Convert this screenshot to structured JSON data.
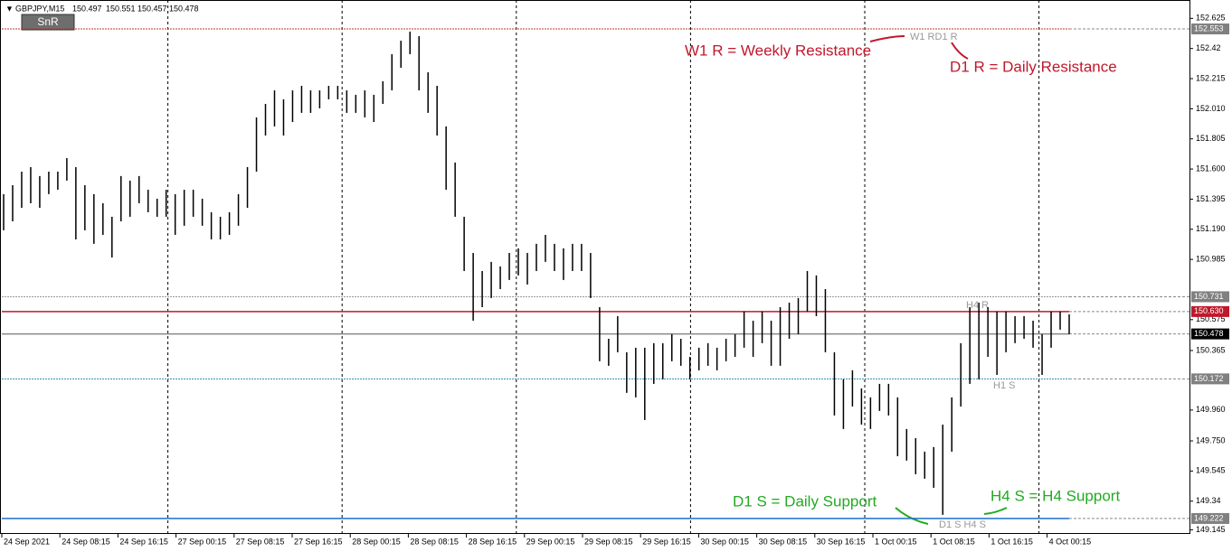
{
  "chart_data": {
    "type": "ohlc",
    "header": {
      "symbol": "GBPJPY,M15",
      "ohlc": [
        150.497,
        150.551,
        150.457,
        150.478
      ]
    },
    "button": "SnR",
    "color": "#000000",
    "ylim": [
      149.117,
      152.75
    ],
    "yticks": [
      152.625,
      152.42,
      152.215,
      {
        "value": 152.01,
        "label": "152.010"
      },
      151.805,
      {
        "value": 151.6,
        "label": "151.600"
      },
      151.395,
      {
        "value": 151.19,
        "label": "151.190"
      },
      150.985,
      150.575,
      150.365,
      {
        "value": 149.96,
        "label": "149.960"
      },
      {
        "value": 149.75,
        "label": "149.750"
      },
      149.545,
      149.34,
      149.145
    ],
    "time_labels": [
      "24 Sep 2021",
      "24 Sep 08:15",
      "24 Sep 16:15",
      "27 Sep 00:15",
      "27 Sep 08:15",
      "27 Sep 16:15",
      "28 Sep 00:15",
      "28 Sep 08:15",
      "28 Sep 16:15",
      "29 Sep 00:15",
      "29 Sep 08:15",
      "29 Sep 16:15",
      "30 Sep 00:15",
      "30 Sep 08:15",
      "30 Sep 16:15",
      "1 Oct 00:15",
      "1 Oct 08:15",
      "1 Oct 16:15",
      "4 Oct 00:15"
    ],
    "high": [
      151.429,
      151.49,
      151.582,
      151.613,
      151.552,
      151.582,
      151.582,
      151.674,
      151.613,
      151.49,
      151.429,
      151.367,
      151.275,
      151.552,
      151.521,
      151.552,
      151.459,
      151.398,
      151.459,
      151.429,
      151.459,
      151.459,
      151.398,
      151.306,
      151.275,
      151.306,
      151.429,
      151.613,
      151.951,
      152.043,
      152.135,
      152.074,
      152.135,
      152.166,
      152.135,
      152.135,
      152.166,
      152.166,
      152.135,
      152.105,
      152.135,
      152.105,
      152.197,
      152.381,
      152.473,
      152.535,
      152.504,
      152.258,
      152.166,
      151.89,
      151.644,
      151.275,
      151.029,
      150.906,
      150.968,
      150.937,
      151.029,
      151.06,
      151.029,
      151.091,
      151.152,
      151.091,
      151.06,
      151.091,
      151.091,
      151.029,
      150.66,
      150.445,
      150.599,
      150.353,
      150.384,
      150.384,
      150.415,
      150.415,
      150.476,
      150.445,
      150.322,
      150.384,
      150.415,
      150.384,
      150.445,
      150.476,
      150.63,
      150.568,
      150.63,
      150.568,
      150.66,
      150.691,
      150.722,
      150.906,
      150.876,
      150.783,
      150.353,
      150.169,
      150.23,
      150.107,
      150.046,
      150.138,
      150.138,
      150.046,
      149.831,
      149.769,
      149.677,
      149.708,
      149.861,
      150.046,
      150.415,
      150.66,
      150.691,
      150.66,
      150.63,
      150.63,
      150.599,
      150.599,
      150.568,
      150.476,
      150.63,
      150.63,
      150.611
    ],
    "low": [
      151.183,
      151.244,
      151.336,
      151.367,
      151.336,
      151.429,
      151.459,
      151.521,
      151.121,
      151.183,
      151.091,
      151.152,
      150.998,
      151.244,
      151.275,
      151.367,
      151.306,
      151.275,
      151.275,
      151.152,
      151.214,
      151.275,
      151.214,
      151.121,
      151.121,
      151.152,
      151.214,
      151.336,
      151.582,
      151.828,
      151.89,
      151.828,
      151.92,
      151.982,
      151.982,
      152.013,
      152.074,
      152.074,
      151.982,
      151.982,
      151.951,
      151.92,
      152.043,
      152.135,
      152.289,
      152.381,
      152.135,
      151.982,
      151.828,
      151.459,
      151.275,
      150.906,
      150.568,
      150.66,
      150.722,
      150.783,
      150.845,
      150.876,
      150.814,
      150.906,
      150.968,
      150.906,
      150.845,
      150.906,
      150.906,
      150.722,
      150.292,
      150.261,
      150.353,
      150.077,
      150.046,
      149.892,
      150.138,
      150.169,
      150.292,
      150.261,
      150.169,
      150.23,
      150.261,
      150.23,
      150.292,
      150.322,
      150.384,
      150.322,
      150.415,
      150.261,
      150.261,
      150.445,
      150.476,
      150.63,
      150.599,
      150.353,
      149.923,
      149.831,
      149.984,
      149.861,
      149.831,
      149.954,
      149.923,
      149.646,
      149.616,
      149.523,
      149.493,
      149.431,
      149.247,
      149.677,
      149.984,
      150.138,
      150.169,
      150.322,
      150.199,
      150.353,
      150.415,
      150.445,
      150.384,
      150.199,
      150.384,
      150.507,
      150.476
    ],
    "levels": [
      {
        "value": 152.553,
        "color": "#c0392b",
        "style": "dot",
        "box_color": "#808080",
        "label": "W1 RD1 R"
      },
      {
        "value": 150.731,
        "color": "#999999",
        "style": "dot",
        "box_color": "#808080"
      },
      {
        "value": 150.63,
        "price_label": "150.630",
        "color": "#c0182c",
        "style": "solid",
        "box_color": "#c0182c",
        "label": "H4 R"
      },
      {
        "value": 150.478,
        "color": "#888888",
        "style": "solid",
        "box_color": "#000000"
      },
      {
        "value": 150.172,
        "color": "#2a8fa8",
        "style": "dot",
        "box_color": "#808080",
        "label": "H1 S"
      },
      {
        "value": 149.222,
        "color": "#1e6fd0",
        "style": "solid",
        "box_color": "#808080",
        "label": "D1 S H4 S"
      }
    ],
    "annotations": [
      {
        "text": "W1 R = Weekly Resistance",
        "color": "#c0182c"
      },
      {
        "text": "D1 R = Daily Resistance",
        "color": "#c0182c"
      },
      {
        "text": "D1 S = Daily Support",
        "color": "#22aa22"
      },
      {
        "text": "H4 S = H4 Support",
        "color": "#22aa22"
      }
    ]
  }
}
